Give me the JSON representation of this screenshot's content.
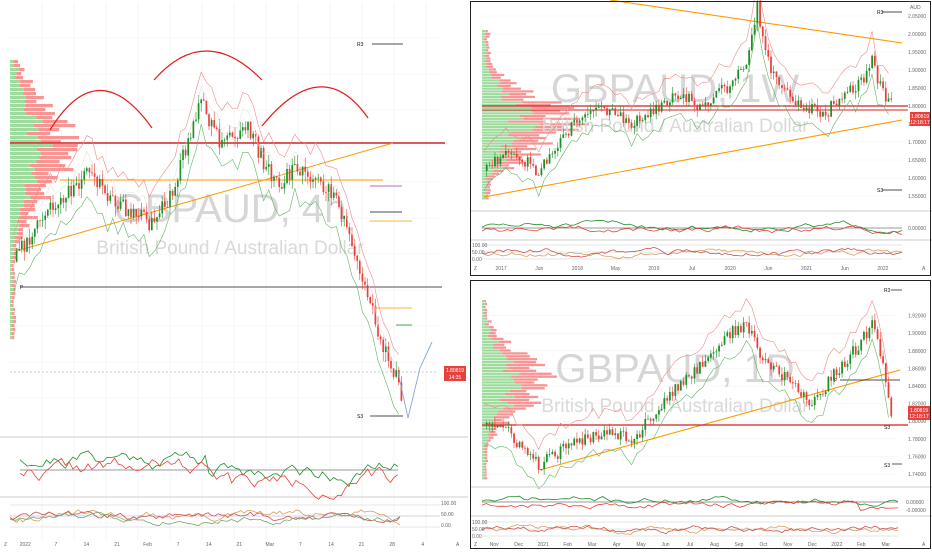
{
  "colors": {
    "up": "#1f8f2a",
    "down": "#e8413b",
    "support": "#ff9900",
    "resistance": "#d32222",
    "purple": "#b06cd0",
    "grid": "#f0f0f0",
    "vp_up": "#7ed07e",
    "vp_down": "#f47070"
  },
  "panels": [
    {
      "id": "h4",
      "watermark": "GBPAUD, 4h",
      "subtitle": "British Pound / Australian Dollar",
      "price_tag": "1.80819",
      "price_tag_sub": "14:35",
      "levels": [
        "R3",
        "P",
        "S3"
      ],
      "y_ticks": [],
      "x_ticks": [
        "2022",
        "7",
        "14",
        "21",
        "Feb",
        "7",
        "14",
        "21",
        "Mar",
        "7",
        "14",
        "21",
        "28",
        "4"
      ],
      "osc_ticks": [
        "100.00",
        "50.00",
        "0.00"
      ],
      "corner_labels": [
        "Z",
        "A"
      ],
      "arcs": 3
    },
    {
      "id": "w",
      "watermark": "GBPAUD, 1W",
      "subtitle": "British Pound / Australian Dollar",
      "currency": "AUD",
      "price_tag": "1.80819",
      "price_tag_sub": "12:18:17",
      "levels": [
        "R3",
        "S3"
      ],
      "y_ticks": [
        "2.10000",
        "2.05000",
        "2.00000",
        "1.95000",
        "1.90000",
        "1.85000",
        "1.80000",
        "1.75000",
        "1.70000",
        "1.65000",
        "1.60000",
        "1.55000"
      ],
      "x_ticks": [
        "2017",
        "Jun",
        "2018",
        "May",
        "2019",
        "Jul",
        "2020",
        "Jun",
        "2021",
        "Jun",
        "2022"
      ],
      "osc_ticks": [
        "0.00000",
        "100.00",
        "50.00",
        "0.00"
      ],
      "corner_labels": [
        "Z",
        "A"
      ]
    },
    {
      "id": "d",
      "watermark": "GBPAUD, 1D",
      "subtitle": "British Pound / Australian Dollar",
      "price_tag": "1.80819",
      "price_tag_sub": "12:18:17",
      "levels": [
        "R3",
        "P",
        "S3",
        "S3"
      ],
      "y_ticks": [
        "1.92000",
        "1.90000",
        "1.88000",
        "1.86000",
        "1.84000",
        "1.82000",
        "1.80000",
        "1.78000",
        "1.76000",
        "1.74000"
      ],
      "x_ticks": [
        "Nov",
        "Dec",
        "2021",
        "Feb",
        "Mar",
        "Apr",
        "May",
        "Jun",
        "Jul",
        "Aug",
        "Sep",
        "Oct",
        "Nov",
        "Dec",
        "2022",
        "Feb",
        "Mar"
      ],
      "osc_ticks": [
        "0.00000",
        "-0.00000",
        "100.00",
        "50.00",
        "0.00"
      ],
      "corner_labels": [
        "Z",
        "A"
      ]
    }
  ],
  "chart_data": [
    {
      "type": "line",
      "title": "GBPAUD, 4h",
      "subtitle": "British Pound / Australian Dollar",
      "x": [
        "Dec 2021",
        "2022",
        "Jan 14",
        "Feb",
        "Feb 14",
        "Mar",
        "Mar 14",
        "Mar 28"
      ],
      "series": [
        {
          "values": [
            1.848,
            1.862,
            1.87,
            1.893,
            1.88,
            1.862,
            1.845,
            1.808
          ]
        }
      ],
      "last_price": 1.80819
    },
    {
      "type": "line",
      "title": "GBPAUD, 1W",
      "subtitle": "British Pound / Australian Dollar",
      "x": [
        "2017",
        "2018",
        "2019",
        "2020",
        "Mar 2020",
        "2021",
        "2022"
      ],
      "series": [
        {
          "values": [
            1.66,
            1.78,
            1.8,
            1.86,
            2.08,
            1.79,
            1.88
          ]
        }
      ],
      "ylim": [
        1.55,
        2.1
      ],
      "last_price": 1.80819
    },
    {
      "type": "line",
      "title": "GBPAUD, 1D",
      "subtitle": "British Pound / Australian Dollar",
      "x": [
        "Nov 2020",
        "Jan 2021",
        "Mar",
        "May",
        "Jul",
        "Aug",
        "Sep",
        "Oct",
        "Nov",
        "Dec",
        "2022",
        "Feb",
        "Mar"
      ],
      "series": [
        {
          "values": [
            1.8,
            1.75,
            1.79,
            1.81,
            1.89,
            1.92,
            1.87,
            1.83,
            1.83,
            1.86,
            1.88,
            1.91,
            1.808
          ]
        }
      ],
      "ylim": [
        1.73,
        1.93
      ],
      "last_price": 1.80819
    }
  ]
}
